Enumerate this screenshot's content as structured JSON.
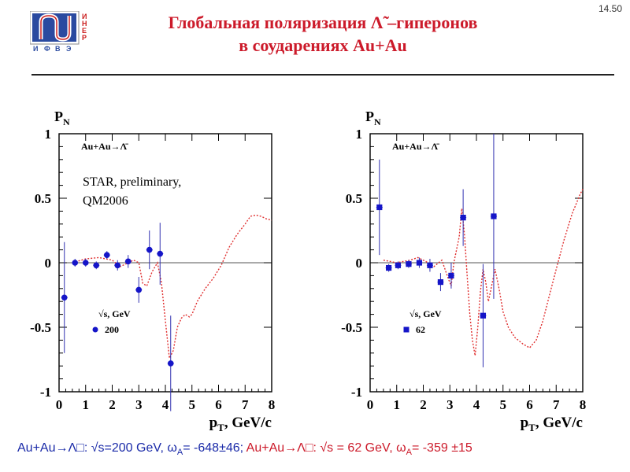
{
  "slide": {
    "number": "14.50",
    "title_line1": "Глобальная поляризация Λ̃ –гиперонов",
    "title_line2": "в соударениях Au+Au",
    "logo_letters": [
      "И",
      "Н",
      "Е",
      "Р",
      "И",
      "Ф",
      "В",
      "Э"
    ]
  },
  "footer": {
    "left_prefix": "Au+Au→Λ□:  √s=200 GeV,  ω",
    "left_sub": "A",
    "left_value": "= -648±46;",
    "right_prefix": "Au+Au→Λ□: √s = 62 GeV,  ω",
    "right_sub": "A",
    "right_value": "= -359 ±15"
  },
  "colors": {
    "title": "#cc1a2a",
    "points": "#1515c8",
    "error_bars": "#3030b0",
    "curve": "#e03030",
    "footer_blue": "#1a2aa8",
    "footer_red": "#cc1a2a",
    "logo_blue": "#2a4aa0",
    "logo_red": "#cc2020"
  },
  "chart_data": [
    {
      "type": "scatter",
      "ylabel": "P",
      "ylabel_sub": "N",
      "xlabel": "p",
      "xlabel_sub": "T",
      "xlabel_unit": ", GeV/c",
      "xlim": [
        0,
        8
      ],
      "ylim": [
        -1,
        1
      ],
      "x_ticks": [
        "0",
        "1",
        "2",
        "3",
        "4",
        "5",
        "6",
        "7",
        "8"
      ],
      "y_ticks": [
        "1",
        "0.5",
        "0",
        "-0.5",
        "-1"
      ],
      "process_label": "Au+Au→Λ̄",
      "annotation_line1": "STAR, preliminary,",
      "annotation_line2": "QM2006",
      "legend_title": "√s, GeV",
      "legend_entry": "200",
      "marker": "circle",
      "points": [
        {
          "x": 0.2,
          "y": -0.27,
          "err": 0.43
        },
        {
          "x": 0.6,
          "y": 0.0,
          "err": 0.03
        },
        {
          "x": 1.0,
          "y": 0.0,
          "err": 0.03
        },
        {
          "x": 1.4,
          "y": -0.02,
          "err": 0.03
        },
        {
          "x": 1.8,
          "y": 0.06,
          "err": 0.03
        },
        {
          "x": 2.2,
          "y": -0.02,
          "err": 0.04
        },
        {
          "x": 2.6,
          "y": 0.01,
          "err": 0.05
        },
        {
          "x": 3.0,
          "y": -0.21,
          "err": 0.1
        },
        {
          "x": 3.4,
          "y": 0.1,
          "err": 0.15
        },
        {
          "x": 3.8,
          "y": 0.07,
          "err": 0.24
        },
        {
          "x": 4.2,
          "y": -0.78,
          "err": 0.37
        }
      ],
      "curve": [
        [
          0.5,
          0.0
        ],
        [
          1.0,
          0.03
        ],
        [
          1.5,
          0.04
        ],
        [
          2.0,
          0.02
        ],
        [
          2.3,
          -0.03
        ],
        [
          2.6,
          0.0
        ],
        [
          2.8,
          0.02
        ],
        [
          3.0,
          0.0
        ],
        [
          3.15,
          -0.16
        ],
        [
          3.3,
          -0.18
        ],
        [
          3.5,
          -0.07
        ],
        [
          3.7,
          0.0
        ],
        [
          3.85,
          -0.15
        ],
        [
          4.0,
          -0.45
        ],
        [
          4.15,
          -0.74
        ],
        [
          4.3,
          -0.68
        ],
        [
          4.45,
          -0.5
        ],
        [
          4.6,
          -0.43
        ],
        [
          4.75,
          -0.4
        ],
        [
          4.9,
          -0.42
        ],
        [
          5.0,
          -0.4
        ],
        [
          5.2,
          -0.3
        ],
        [
          5.5,
          -0.2
        ],
        [
          5.8,
          -0.12
        ],
        [
          6.1,
          -0.02
        ],
        [
          6.4,
          0.12
        ],
        [
          6.7,
          0.22
        ],
        [
          7.0,
          0.3
        ],
        [
          7.2,
          0.36
        ],
        [
          7.4,
          0.37
        ],
        [
          7.6,
          0.36
        ],
        [
          7.8,
          0.34
        ],
        [
          8.0,
          0.33
        ]
      ]
    },
    {
      "type": "scatter",
      "ylabel": "P",
      "ylabel_sub": "N",
      "xlabel": "p",
      "xlabel_sub": "T",
      "xlabel_unit": ", GeV/c",
      "xlim": [
        0,
        8
      ],
      "ylim": [
        -1,
        1
      ],
      "x_ticks": [
        "0",
        "1",
        "2",
        "3",
        "4",
        "5",
        "6",
        "7",
        "8"
      ],
      "y_ticks": [
        "1",
        "0.5",
        "0",
        "-0.5",
        "-1"
      ],
      "process_label": "Au+Au→Λ̄",
      "legend_title": "√s, GeV",
      "legend_entry": "62",
      "marker": "square",
      "points": [
        {
          "x": 0.35,
          "y": 0.43,
          "err": 0.37
        },
        {
          "x": 0.7,
          "y": -0.04,
          "err": 0.03
        },
        {
          "x": 1.05,
          "y": -0.02,
          "err": 0.03
        },
        {
          "x": 1.45,
          "y": -0.01,
          "err": 0.03
        },
        {
          "x": 1.85,
          "y": 0.0,
          "err": 0.04
        },
        {
          "x": 2.25,
          "y": -0.02,
          "err": 0.05
        },
        {
          "x": 2.65,
          "y": -0.15,
          "err": 0.07
        },
        {
          "x": 3.05,
          "y": -0.1,
          "err": 0.1
        },
        {
          "x": 3.5,
          "y": 0.35,
          "err": 0.22
        },
        {
          "x": 4.25,
          "y": -0.41,
          "err": 0.4
        },
        {
          "x": 4.65,
          "y": 0.36,
          "err": 0.64
        }
      ],
      "curve": [
        [
          0.5,
          0.02
        ],
        [
          1.0,
          0.0
        ],
        [
          1.5,
          0.02
        ],
        [
          1.8,
          0.04
        ],
        [
          2.1,
          0.01
        ],
        [
          2.4,
          -0.03
        ],
        [
          2.7,
          0.02
        ],
        [
          2.9,
          -0.1
        ],
        [
          3.05,
          -0.18
        ],
        [
          3.15,
          0.0
        ],
        [
          3.25,
          0.1
        ],
        [
          3.35,
          0.2
        ],
        [
          3.45,
          0.42
        ],
        [
          3.55,
          0.22
        ],
        [
          3.65,
          -0.1
        ],
        [
          3.75,
          -0.4
        ],
        [
          3.85,
          -0.6
        ],
        [
          3.95,
          -0.72
        ],
        [
          4.05,
          -0.5
        ],
        [
          4.15,
          -0.22
        ],
        [
          4.25,
          -0.05
        ],
        [
          4.35,
          -0.15
        ],
        [
          4.45,
          -0.3
        ],
        [
          4.55,
          -0.2
        ],
        [
          4.7,
          -0.05
        ],
        [
          4.85,
          -0.2
        ],
        [
          5.0,
          -0.38
        ],
        [
          5.2,
          -0.5
        ],
        [
          5.45,
          -0.58
        ],
        [
          5.75,
          -0.63
        ],
        [
          6.0,
          -0.66
        ],
        [
          6.25,
          -0.6
        ],
        [
          6.5,
          -0.45
        ],
        [
          6.75,
          -0.25
        ],
        [
          7.0,
          -0.05
        ],
        [
          7.3,
          0.18
        ],
        [
          7.6,
          0.38
        ],
        [
          7.9,
          0.53
        ],
        [
          8.0,
          0.57
        ]
      ]
    }
  ]
}
